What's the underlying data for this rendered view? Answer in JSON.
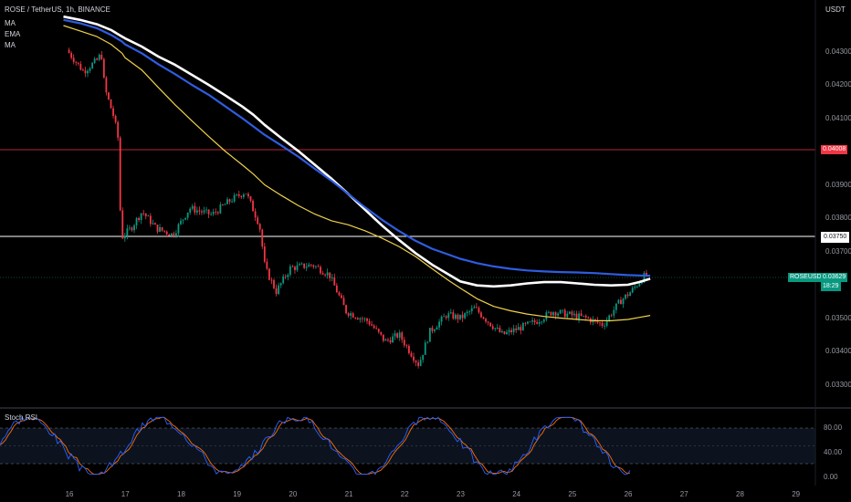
{
  "header": {
    "symbol_line": "ROSE / TetherUS, 1h, BINANCE",
    "indicators": [
      "MA",
      "EMA",
      "MA"
    ]
  },
  "axis": {
    "currency": "USDT",
    "price_ticks": [
      "0.04300",
      "0.04200",
      "0.04100",
      "0.03900",
      "0.03800",
      "0.03700",
      "0.03500",
      "0.03400",
      "0.03300"
    ],
    "date_ticks": [
      "16",
      "17",
      "18",
      "19",
      "20",
      "21",
      "22",
      "23",
      "24",
      "25",
      "26",
      "27",
      "28",
      "29"
    ]
  },
  "levels": {
    "red": {
      "label": "0.04008",
      "value": 0.04008,
      "color": "#f23645"
    },
    "white": {
      "label": "0.03750",
      "value": 0.0375,
      "color": "#ffffff"
    }
  },
  "current": {
    "symbol": "ROSEUSDT",
    "price": "0.03629",
    "countdown": "18:29",
    "value": 0.03629,
    "color": "#089981"
  },
  "stoch": {
    "title": "Stoch RSI",
    "ticks": [
      "80.00",
      "40.00",
      "0.00"
    ],
    "k_color": "#2962ff",
    "d_color": "#ff6d00"
  },
  "colors": {
    "up": "#089981",
    "down": "#f23645",
    "ma_white": "#ffffff",
    "ema_blue": "#2f5ce0",
    "ma_yellow": "#f0d24a"
  },
  "chart_data": {
    "type": "line",
    "title": "ROSE / TetherUS, 1h, BINANCE",
    "ylabel": "USDT",
    "ylim": [
      0.0328,
      0.044
    ],
    "x": [
      15.9,
      16.2,
      16.5,
      16.75,
      16.95,
      17.0,
      17.3,
      17.6,
      17.9,
      18.2,
      18.5,
      18.8,
      19.1,
      19.3,
      19.5,
      19.8,
      20.1,
      20.4,
      20.7,
      21.0,
      21.3,
      21.6,
      21.9,
      22.2,
      22.5,
      22.8,
      23.0,
      23.3,
      23.6,
      23.9,
      24.2,
      24.5,
      24.8,
      25.1,
      25.4,
      25.7,
      26.0,
      26.2,
      26.4
    ],
    "series": [
      {
        "name": "MA",
        "values": [
          0.04405,
          0.04395,
          0.04382,
          0.04365,
          0.04345,
          0.0434,
          0.04315,
          0.04285,
          0.0426,
          0.0423,
          0.042,
          0.04168,
          0.04135,
          0.0411,
          0.0408,
          0.0404,
          0.04002,
          0.0396,
          0.03918,
          0.03872,
          0.03825,
          0.03778,
          0.03735,
          0.03695,
          0.0366,
          0.0363,
          0.0361,
          0.03598,
          0.03595,
          0.03598,
          0.03604,
          0.03608,
          0.03608,
          0.03604,
          0.036,
          0.03598,
          0.036,
          0.03608,
          0.03618
        ]
      },
      {
        "name": "EMA",
        "values": [
          0.04395,
          0.04385,
          0.0437,
          0.0435,
          0.0433,
          0.04322,
          0.04295,
          0.04262,
          0.04232,
          0.042,
          0.0417,
          0.04135,
          0.041,
          0.04075,
          0.0405,
          0.04018,
          0.03985,
          0.03948,
          0.03912,
          0.03872,
          0.03832,
          0.03795,
          0.03762,
          0.03732,
          0.03708,
          0.0369,
          0.03678,
          0.03665,
          0.03655,
          0.03648,
          0.03643,
          0.0364,
          0.03638,
          0.03637,
          0.03635,
          0.03632,
          0.03629,
          0.03628,
          0.03627
        ]
      },
      {
        "name": "MA",
        "values": [
          0.04378,
          0.04362,
          0.04345,
          0.04322,
          0.04295,
          0.04282,
          0.04245,
          0.04192,
          0.0414,
          0.04092,
          0.04045,
          0.04,
          0.0396,
          0.03932,
          0.039,
          0.03868,
          0.03838,
          0.03812,
          0.03792,
          0.0378,
          0.03762,
          0.0374,
          0.03715,
          0.03685,
          0.03648,
          0.03612,
          0.0359,
          0.03558,
          0.03535,
          0.03522,
          0.03512,
          0.03505,
          0.035,
          0.03496,
          0.03492,
          0.03492,
          0.03496,
          0.03502,
          0.03508
        ]
      }
    ],
    "price_candles_approx": [
      {
        "x": 16.0,
        "o": 0.0432,
        "c": 0.043
      },
      {
        "x": 16.5,
        "o": 0.0428,
        "c": 0.0418
      },
      {
        "x": 16.95,
        "o": 0.0415,
        "c": 0.0375
      },
      {
        "x": 17.5,
        "o": 0.0382,
        "c": 0.038
      },
      {
        "x": 18.5,
        "o": 0.0385,
        "c": 0.0387
      },
      {
        "x": 19.3,
        "o": 0.0388,
        "c": 0.0378
      },
      {
        "x": 19.6,
        "o": 0.0372,
        "c": 0.036
      },
      {
        "x": 20.5,
        "o": 0.0366,
        "c": 0.0358
      },
      {
        "x": 21.5,
        "o": 0.0352,
        "c": 0.0345
      },
      {
        "x": 22.3,
        "o": 0.0342,
        "c": 0.0337
      },
      {
        "x": 23.0,
        "o": 0.0348,
        "c": 0.035
      },
      {
        "x": 24.0,
        "o": 0.0347,
        "c": 0.0349
      },
      {
        "x": 25.0,
        "o": 0.0351,
        "c": 0.035
      },
      {
        "x": 26.2,
        "o": 0.0358,
        "c": 0.0362
      }
    ]
  }
}
